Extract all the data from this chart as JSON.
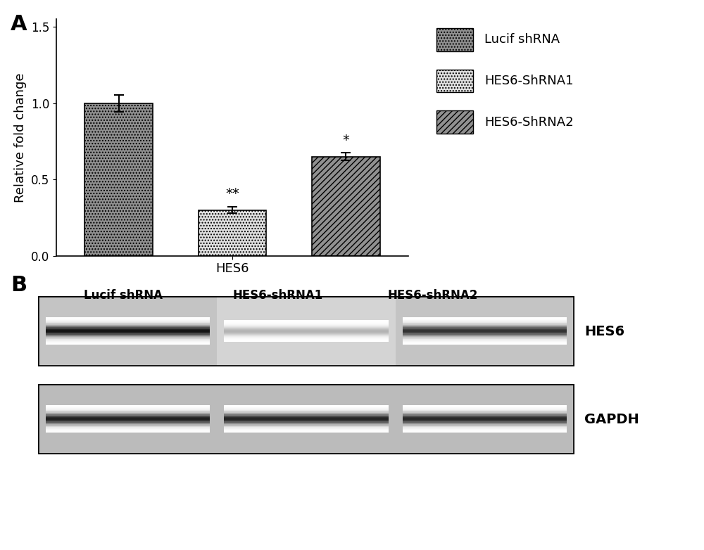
{
  "panel_A_values": [
    1.0,
    0.3,
    0.65
  ],
  "panel_A_errors": [
    0.055,
    0.022,
    0.025
  ],
  "panel_A_significance": [
    "",
    "**",
    "*"
  ],
  "panel_A_xlabel": "HES6",
  "panel_A_ylabel": "Relative fold change",
  "panel_A_ylim": [
    0,
    1.55
  ],
  "panel_A_yticks": [
    0.0,
    0.5,
    1.0,
    1.5
  ],
  "legend_labels": [
    "Lucif shRNA",
    "HES6-ShRNA1",
    "HES6-ShRNA2"
  ],
  "panel_label_A": "A",
  "panel_label_B": "B",
  "panel_B_col_labels": [
    "Lucif shRNA",
    "HES6-shRNA1",
    "HES6-shRNA2"
  ],
  "panel_B_row_labels": [
    "HES6",
    "GAPDH"
  ],
  "bg_color": "#ffffff",
  "bar_edge_color": "#000000",
  "axis_label_fontsize": 13,
  "tick_fontsize": 12,
  "legend_fontsize": 13,
  "sig_fontsize": 14,
  "blot_bg_light": "#cccccc",
  "blot_bg_lighter": "#d8d8d8",
  "blot_border": "#000000"
}
